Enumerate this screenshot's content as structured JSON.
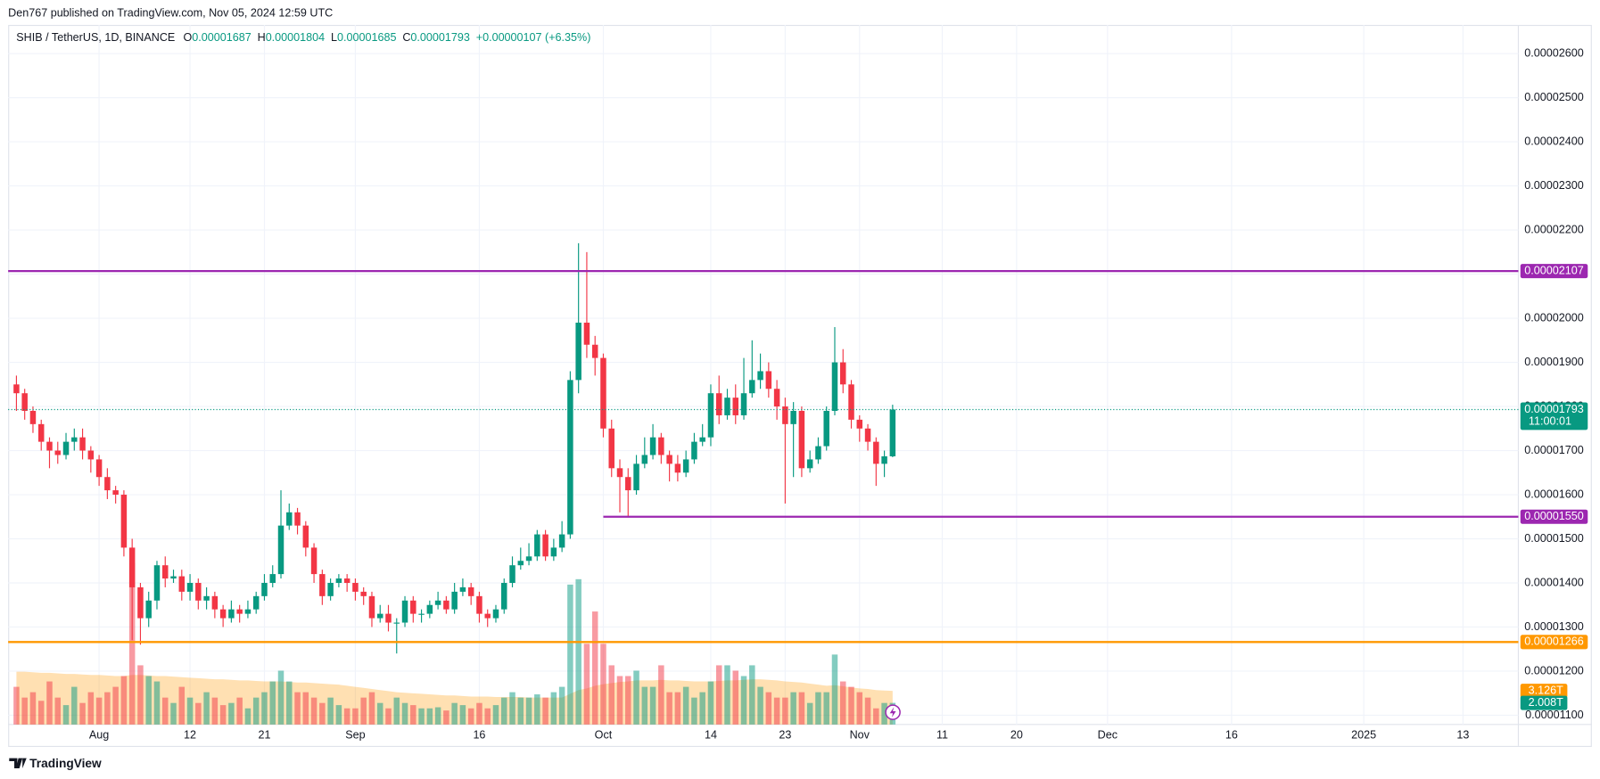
{
  "header": {
    "publisher": "Den767 published on TradingView.com, Nov 05, 2024 12:59 UTC"
  },
  "chart_data": {
    "type": "candlestick",
    "title": "SHIB / TetherUS, 1D, BINANCE",
    "legend": [
      {
        "key": "O",
        "value": "0.00001687"
      },
      {
        "key": "H",
        "value": "0.00001804"
      },
      {
        "key": "L",
        "value": "0.00001685"
      },
      {
        "key": "C",
        "value": "0.00001793"
      },
      {
        "key": "",
        "value": "+0.00000107 (+6.35%)"
      }
    ],
    "open": [
      1.85e-05,
      1.83e-05,
      1.79e-05,
      1.76e-05,
      1.72e-05,
      1.7e-05,
      1.69e-05,
      1.72e-05,
      1.73e-05,
      1.7e-05,
      1.68e-05,
      1.64e-05,
      1.61e-05,
      1.6e-05,
      1.48e-05,
      1.39e-05,
      1.32e-05,
      1.36e-05,
      1.44e-05,
      1.41e-05,
      1.415e-05,
      1.38e-05,
      1.4e-05,
      1.36e-05,
      1.37e-05,
      1.34e-05,
      1.32e-05,
      1.34e-05,
      1.33e-05,
      1.34e-05,
      1.37e-05,
      1.4e-05,
      1.42e-05,
      1.53e-05,
      1.56e-05,
      1.53e-05,
      1.48e-05,
      1.42e-05,
      1.37e-05,
      1.4e-05,
      1.41e-05,
      1.4e-05,
      1.38e-05,
      1.37e-05,
      1.32e-05,
      1.33e-05,
      1.31e-05,
      1.31e-05,
      1.36e-05,
      1.33e-05,
      1.33e-05,
      1.35e-05,
      1.36e-05,
      1.34e-05,
      1.38e-05,
      1.39e-05,
      1.37e-05,
      1.33e-05,
      1.32e-05,
      1.34e-05,
      1.4e-05,
      1.44e-05,
      1.45e-05,
      1.46e-05,
      1.51e-05,
      1.46e-05,
      1.48e-05,
      1.51e-05,
      1.86e-05,
      1.99e-05,
      1.94e-05,
      1.91e-05,
      1.75e-05,
      1.66e-05,
      1.64e-05,
      1.61e-05,
      1.67e-05,
      1.69e-05,
      1.73e-05,
      1.69e-05,
      1.67e-05,
      1.65e-05,
      1.68e-05,
      1.72e-05,
      1.73e-05,
      1.83e-05,
      1.78e-05,
      1.82e-05,
      1.78e-05,
      1.83e-05,
      1.86e-05,
      1.88e-05,
      1.84e-05,
      1.8e-05,
      1.76e-05,
      1.79e-05,
      1.66e-05,
      1.68e-05,
      1.71e-05,
      1.79e-05,
      1.9e-05,
      1.85e-05,
      1.77e-05,
      1.75e-05,
      1.72e-05,
      1.67e-05,
      1.687e-05
    ],
    "high": [
      1.87e-05,
      1.84e-05,
      1.8e-05,
      1.77e-05,
      1.73e-05,
      1.72e-05,
      1.74e-05,
      1.75e-05,
      1.75e-05,
      1.71e-05,
      1.69e-05,
      1.66e-05,
      1.62e-05,
      1.61e-05,
      1.5e-05,
      1.4e-05,
      1.38e-05,
      1.45e-05,
      1.46e-05,
      1.43e-05,
      1.43e-05,
      1.42e-05,
      1.41e-05,
      1.39e-05,
      1.38e-05,
      1.35e-05,
      1.36e-05,
      1.35e-05,
      1.36e-05,
      1.38e-05,
      1.42e-05,
      1.44e-05,
      1.61e-05,
      1.58e-05,
      1.57e-05,
      1.54e-05,
      1.49e-05,
      1.43e-05,
      1.41e-05,
      1.42e-05,
      1.42e-05,
      1.41e-05,
      1.39e-05,
      1.38e-05,
      1.35e-05,
      1.35e-05,
      1.32e-05,
      1.37e-05,
      1.37e-05,
      1.34e-05,
      1.36e-05,
      1.38e-05,
      1.37e-05,
      1.4e-05,
      1.41e-05,
      1.4e-05,
      1.38e-05,
      1.34e-05,
      1.35e-05,
      1.41e-05,
      1.46e-05,
      1.48e-05,
      1.49e-05,
      1.52e-05,
      1.52e-05,
      1.5e-05,
      1.54e-05,
      1.88e-05,
      2.17e-05,
      2.15e-05,
      1.96e-05,
      1.92e-05,
      1.77e-05,
      1.68e-05,
      1.66e-05,
      1.69e-05,
      1.73e-05,
      1.76e-05,
      1.74e-05,
      1.7e-05,
      1.69e-05,
      1.7e-05,
      1.74e-05,
      1.76e-05,
      1.85e-05,
      1.87e-05,
      1.84e-05,
      1.85e-05,
      1.91e-05,
      1.95e-05,
      1.92e-05,
      1.9e-05,
      1.86e-05,
      1.82e-05,
      1.81e-05,
      1.8e-05,
      1.7e-05,
      1.73e-05,
      1.8e-05,
      1.98e-05,
      1.93e-05,
      1.86e-05,
      1.78e-05,
      1.76e-05,
      1.73e-05,
      1.7e-05,
      1.804e-05
    ],
    "low": [
      1.79e-05,
      1.77e-05,
      1.74e-05,
      1.7e-05,
      1.66e-05,
      1.67e-05,
      1.68e-05,
      1.7e-05,
      1.68e-05,
      1.65e-05,
      1.62e-05,
      1.59e-05,
      1.58e-05,
      1.46e-05,
      1.27e-05,
      1.26e-05,
      1.3e-05,
      1.34e-05,
      1.39e-05,
      1.4e-05,
      1.36e-05,
      1.36e-05,
      1.34e-05,
      1.34e-05,
      1.32e-05,
      1.3e-05,
      1.31e-05,
      1.31e-05,
      1.32e-05,
      1.33e-05,
      1.36e-05,
      1.39e-05,
      1.41e-05,
      1.52e-05,
      1.51e-05,
      1.46e-05,
      1.4e-05,
      1.35e-05,
      1.36e-05,
      1.39e-05,
      1.38e-05,
      1.36e-05,
      1.35e-05,
      1.3e-05,
      1.31e-05,
      1.29e-05,
      1.24e-05,
      1.3e-05,
      1.31e-05,
      1.31e-05,
      1.32e-05,
      1.34e-05,
      1.33e-05,
      1.33e-05,
      1.37e-05,
      1.35e-05,
      1.31e-05,
      1.3e-05,
      1.31e-05,
      1.33e-05,
      1.39e-05,
      1.43e-05,
      1.44e-05,
      1.45e-05,
      1.45e-05,
      1.45e-05,
      1.47e-05,
      1.5e-05,
      1.83e-05,
      1.91e-05,
      1.87e-05,
      1.73e-05,
      1.64e-05,
      1.56e-05,
      1.55e-05,
      1.6e-05,
      1.66e-05,
      1.68e-05,
      1.67e-05,
      1.63e-05,
      1.63e-05,
      1.64e-05,
      1.67e-05,
      1.71e-05,
      1.71e-05,
      1.76e-05,
      1.77e-05,
      1.76e-05,
      1.77e-05,
      1.82e-05,
      1.84e-05,
      1.82e-05,
      1.77e-05,
      1.58e-05,
      1.64e-05,
      1.64e-05,
      1.65e-05,
      1.67e-05,
      1.7e-05,
      1.78e-05,
      1.83e-05,
      1.75e-05,
      1.72e-05,
      1.7e-05,
      1.62e-05,
      1.64e-05,
      1.685e-05
    ],
    "close": [
      1.83e-05,
      1.79e-05,
      1.76e-05,
      1.72e-05,
      1.7e-05,
      1.69e-05,
      1.72e-05,
      1.73e-05,
      1.7e-05,
      1.68e-05,
      1.64e-05,
      1.61e-05,
      1.6e-05,
      1.48e-05,
      1.39e-05,
      1.32e-05,
      1.36e-05,
      1.44e-05,
      1.41e-05,
      1.415e-05,
      1.38e-05,
      1.4e-05,
      1.36e-05,
      1.37e-05,
      1.34e-05,
      1.32e-05,
      1.34e-05,
      1.33e-05,
      1.34e-05,
      1.37e-05,
      1.4e-05,
      1.42e-05,
      1.53e-05,
      1.56e-05,
      1.53e-05,
      1.48e-05,
      1.42e-05,
      1.37e-05,
      1.4e-05,
      1.41e-05,
      1.4e-05,
      1.38e-05,
      1.37e-05,
      1.32e-05,
      1.33e-05,
      1.31e-05,
      1.31e-05,
      1.36e-05,
      1.33e-05,
      1.33e-05,
      1.35e-05,
      1.36e-05,
      1.34e-05,
      1.38e-05,
      1.39e-05,
      1.37e-05,
      1.33e-05,
      1.32e-05,
      1.34e-05,
      1.4e-05,
      1.44e-05,
      1.45e-05,
      1.46e-05,
      1.51e-05,
      1.46e-05,
      1.48e-05,
      1.51e-05,
      1.86e-05,
      1.99e-05,
      1.94e-05,
      1.91e-05,
      1.75e-05,
      1.66e-05,
      1.64e-05,
      1.61e-05,
      1.67e-05,
      1.69e-05,
      1.73e-05,
      1.69e-05,
      1.67e-05,
      1.65e-05,
      1.68e-05,
      1.72e-05,
      1.73e-05,
      1.83e-05,
      1.78e-05,
      1.82e-05,
      1.78e-05,
      1.83e-05,
      1.86e-05,
      1.88e-05,
      1.84e-05,
      1.8e-05,
      1.76e-05,
      1.79e-05,
      1.66e-05,
      1.68e-05,
      1.71e-05,
      1.79e-05,
      1.9e-05,
      1.85e-05,
      1.77e-05,
      1.75e-05,
      1.72e-05,
      1.67e-05,
      1.687e-05,
      1.793e-05
    ],
    "up_color": "#089981",
    "down_color": "#f23645",
    "volume": [
      3.5,
      2.5,
      3.0,
      2.2,
      4.0,
      2.5,
      1.8,
      3.5,
      2.0,
      3.0,
      2.5,
      3.0,
      3.5,
      4.5,
      15,
      5.5,
      4.5,
      4.0,
      2.5,
      2.0,
      3.5,
      2.5,
      2.0,
      3.0,
      2.5,
      1.8,
      2.0,
      2.5,
      1.5,
      2.5,
      3.0,
      4.0,
      5.0,
      4.0,
      3.0,
      3.0,
      2.5,
      2.0,
      2.5,
      1.8,
      1.5,
      1.5,
      2.5,
      3.0,
      2.0,
      1.5,
      2.5,
      2.0,
      1.8,
      1.5,
      1.5,
      1.6,
      1.3,
      2.0,
      1.8,
      1.5,
      2.0,
      1.5,
      1.8,
      2.5,
      3.0,
      2.5,
      2.5,
      2.8,
      2.5,
      3.0,
      3.5,
      13,
      13.5,
      7.5,
      10.5,
      7.5,
      5.5,
      4.5,
      4.5,
      5.0,
      3.5,
      3.5,
      5.5,
      3.0,
      3.0,
      3.5,
      2.5,
      3.0,
      4.0,
      5.5,
      5.5,
      5.0,
      4.5,
      5.5,
      3.5,
      3.0,
      2.5,
      2.5,
      3.0,
      3.0,
      2.0,
      3.0,
      3.0,
      6.5,
      4.0,
      3.5,
      3.0,
      2.5,
      1.5,
      2.0,
      2.008
    ],
    "volume_ma": [
      4.9,
      4.9,
      4.85,
      4.8,
      4.8,
      4.75,
      4.7,
      4.7,
      4.65,
      4.6,
      4.6,
      4.55,
      4.5,
      4.5,
      4.6,
      4.6,
      4.55,
      4.5,
      4.5,
      4.45,
      4.4,
      4.35,
      4.3,
      4.25,
      4.2,
      4.2,
      4.15,
      4.1,
      4.1,
      4.05,
      4.0,
      4.0,
      4.0,
      3.95,
      3.9,
      3.9,
      3.85,
      3.8,
      3.75,
      3.7,
      3.6,
      3.5,
      3.4,
      3.3,
      3.2,
      3.1,
      3.0,
      2.95,
      2.9,
      2.85,
      2.8,
      2.75,
      2.7,
      2.7,
      2.65,
      2.6,
      2.6,
      2.6,
      2.55,
      2.55,
      2.55,
      2.55,
      2.5,
      2.5,
      2.5,
      2.5,
      2.5,
      2.85,
      3.2,
      3.35,
      3.6,
      3.75,
      3.85,
      3.95,
      4.0,
      4.1,
      4.1,
      4.1,
      4.15,
      4.1,
      4.1,
      4.05,
      4.0,
      4.0,
      4.0,
      4.05,
      4.1,
      4.1,
      4.15,
      4.2,
      4.2,
      4.15,
      4.1,
      4.0,
      3.95,
      3.9,
      3.8,
      3.7,
      3.6,
      3.65,
      3.55,
      3.45,
      3.35,
      3.3,
      3.2,
      3.15,
      3.126
    ],
    "volume_ma_color": "#ff9800",
    "vlim": [
      0,
      65
    ],
    "volume_label": {
      "value": 2.008,
      "label": "2.008T"
    },
    "volume_ma_label": {
      "value": 3.126,
      "label": "3.126T"
    },
    "xlim": [
      -1,
      181.7
    ],
    "xticks": [
      {
        "value": 10,
        "label": "Aug"
      },
      {
        "value": 21,
        "label": "12"
      },
      {
        "value": 30,
        "label": "21"
      },
      {
        "value": 41,
        "label": "Sep"
      },
      {
        "value": 56,
        "label": "16"
      },
      {
        "value": 71,
        "label": "Oct"
      },
      {
        "value": 84,
        "label": "14"
      },
      {
        "value": 93,
        "label": "23"
      },
      {
        "value": 102,
        "label": "Nov"
      },
      {
        "value": 112,
        "label": "11"
      },
      {
        "value": 121,
        "label": "20"
      },
      {
        "value": 132,
        "label": "Dec"
      },
      {
        "value": 147,
        "label": "16"
      },
      {
        "value": 163,
        "label": "2025"
      },
      {
        "value": 175,
        "label": "13"
      }
    ],
    "ylim": [
      1.079e-05,
      2.665e-05
    ],
    "yticks": [
      {
        "value": 1.1e-05,
        "label": "0.00001100"
      },
      {
        "value": 1.2e-05,
        "label": "0.00001200"
      },
      {
        "value": 1.3e-05,
        "label": "0.00001300"
      },
      {
        "value": 1.4e-05,
        "label": "0.00001400"
      },
      {
        "value": 1.5e-05,
        "label": "0.00001500"
      },
      {
        "value": 1.6e-05,
        "label": "0.00001600"
      },
      {
        "value": 1.7e-05,
        "label": "0.00001700"
      },
      {
        "value": 1.8e-05,
        "label": "0.00001800"
      },
      {
        "value": 1.9e-05,
        "label": "0.00001900"
      },
      {
        "value": 2e-05,
        "label": "0.00002000"
      },
      {
        "value": 2.1e-05,
        "label": "0.00002100"
      },
      {
        "value": 2.2e-05,
        "label": "0.00002200"
      },
      {
        "value": 2.3e-05,
        "label": "0.00002300"
      },
      {
        "value": 2.4e-05,
        "label": "0.00002400"
      },
      {
        "value": 2.5e-05,
        "label": "0.00002500"
      },
      {
        "value": 2.6e-05,
        "label": "0.00002600"
      }
    ],
    "grid": true,
    "levels": [
      {
        "value": 2.107e-05,
        "label": "0.00002107",
        "color": "#9c27b0"
      },
      {
        "value": 1.55e-05,
        "label": "0.00001550",
        "color": "#9c27b0",
        "start_x": 71
      },
      {
        "value": 1.266e-05,
        "label": "0.00001266",
        "color": "#ff9800"
      }
    ],
    "last_price": {
      "value": 1.793e-05,
      "label": "0.00001793"
    },
    "countdown": "11:00:01"
  },
  "footer": {
    "brand": "TradingView"
  }
}
